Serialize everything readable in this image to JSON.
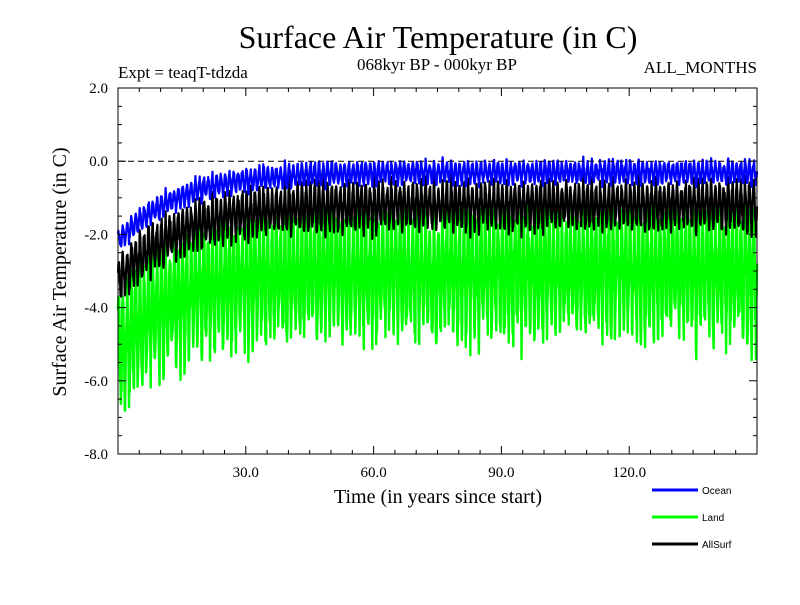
{
  "chart_data": {
    "type": "line",
    "title": "Surface Air Temperature (in C)",
    "subtitle_left": "Expt = teaqT-tdzda",
    "subtitle_center": "068kyr BP - 000kyr BP",
    "subtitle_right": "ALL_MONTHS",
    "xlabel": "Time (in years since start)",
    "ylabel": "Surface Air Temperature (in C)",
    "xlim": [
      0,
      150
    ],
    "ylim": [
      -8.0,
      2.0
    ],
    "x_ticks": [
      {
        "value": 30,
        "label": "30.0"
      },
      {
        "value": 60,
        "label": "60.0"
      },
      {
        "value": 90,
        "label": "90.0"
      },
      {
        "value": 120,
        "label": "120.0"
      }
    ],
    "y_ticks": [
      {
        "value": 2.0,
        "label": "2.0"
      },
      {
        "value": 0.0,
        "label": "0.0"
      },
      {
        "value": -2.0,
        "label": "-2.0"
      },
      {
        "value": -4.0,
        "label": "-4.0"
      },
      {
        "value": -6.0,
        "label": "-6.0"
      },
      {
        "value": -8.0,
        "label": "-8.0"
      }
    ],
    "reference_line": 0.0,
    "legend_position": "bottom-right",
    "series": [
      {
        "name": "Ocean",
        "color": "#0000ff",
        "description": "monthly values, seasonal swing ~0.7, mean rising from -2.2 at start to about -0.3",
        "mean_start": -2.2,
        "mean_end": -0.3,
        "amplitude": 0.35,
        "min_value": -2.6,
        "max_value": 0.35
      },
      {
        "name": "Land",
        "color": "#00ff00",
        "description": "monthly values, large seasonal swing ~4, mean rising from -5 at start to about -3",
        "mean_start": -5.2,
        "mean_end": -3.0,
        "amplitude": 2.0,
        "min_value": -7.3,
        "max_value": -0.4
      },
      {
        "name": "AllSurf",
        "color": "#000000",
        "description": "monthly values, seasonal swing ~1.5, mean rising from -3.3 at start to about -1.2",
        "mean_start": -3.3,
        "mean_end": -1.2,
        "amplitude": 0.75,
        "min_value": -3.8,
        "max_value": -0.2
      }
    ]
  }
}
